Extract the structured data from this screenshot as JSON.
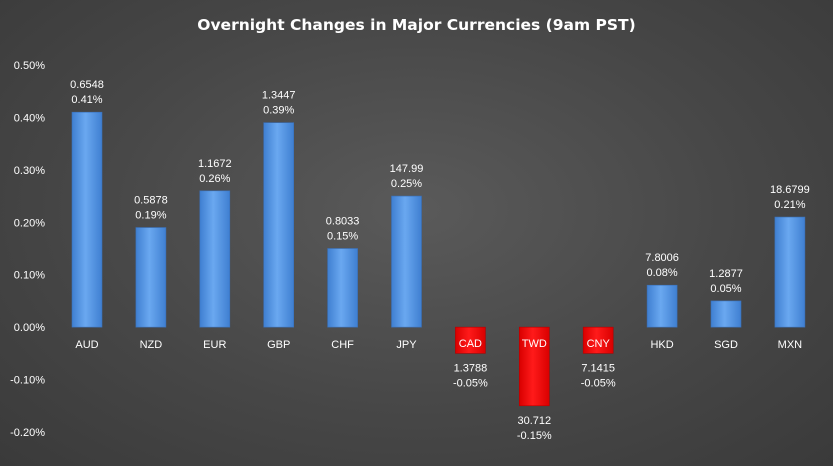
{
  "chart_data": {
    "type": "bar",
    "title": "Overnight Changes in Major Currencies (9am PST)",
    "xlabel": "",
    "ylabel": "",
    "ylim": [
      -0.2,
      0.5
    ],
    "yticks": [
      0.5,
      0.4,
      0.3,
      0.2,
      0.1,
      0.0,
      -0.1,
      -0.2
    ],
    "ytick_labels": [
      "0.50%",
      "0.40%",
      "0.30%",
      "0.20%",
      "0.10%",
      "0.00%",
      "-0.10%",
      "-0.20%"
    ],
    "categories": [
      "AUD",
      "NZD",
      "EUR",
      "GBP",
      "CHF",
      "JPY",
      "CAD",
      "TWD",
      "CNY",
      "HKD",
      "SGD",
      "MXN"
    ],
    "values": [
      0.41,
      0.19,
      0.26,
      0.39,
      0.15,
      0.25,
      -0.05,
      -0.15,
      -0.05,
      0.08,
      0.05,
      0.21
    ],
    "rates": [
      "0.6548",
      "0.5878",
      "1.1672",
      "1.3447",
      "0.8033",
      "147.99",
      "1.3788",
      "30.712",
      "7.1415",
      "7.8006",
      "1.2877",
      "18.6799"
    ],
    "pct_labels": [
      "0.41%",
      "0.19%",
      "0.26%",
      "0.39%",
      "0.15%",
      "0.25%",
      "-0.05%",
      "-0.15%",
      "-0.05%",
      "0.08%",
      "0.05%",
      "0.21%"
    ],
    "grid": false,
    "legend": "none",
    "colors": {
      "positive": "#5b9be6",
      "negative": "#ff0000",
      "background": "#484848"
    }
  }
}
